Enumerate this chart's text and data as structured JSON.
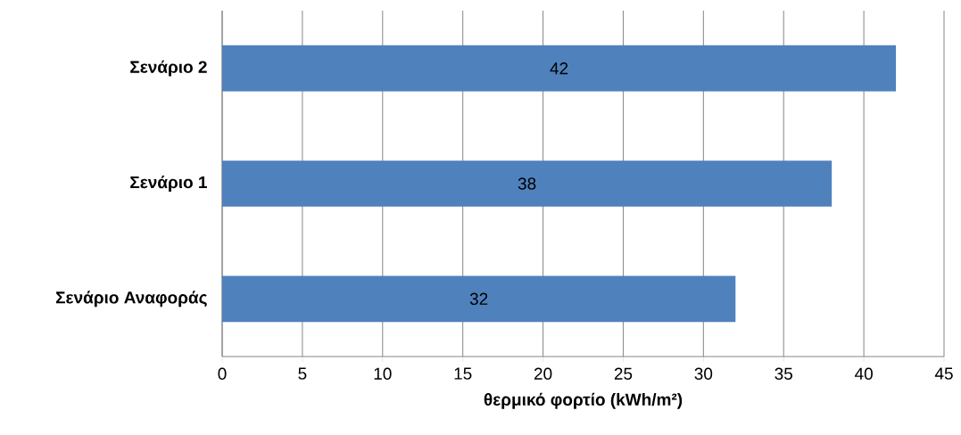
{
  "chart_data": {
    "type": "bar",
    "orientation": "horizontal",
    "categories": [
      "Σενάριο 2",
      "Σενάριο 1",
      "Σενάριο Αναφοράς"
    ],
    "values": [
      42,
      38,
      32
    ],
    "color": "#4f81bd",
    "xlabel": "θερμικό φορτίο (kWh/m²)",
    "xlim": [
      0,
      45
    ],
    "xticks": [
      0,
      5,
      10,
      15,
      20,
      25,
      30,
      35,
      40,
      45
    ],
    "grid": "x",
    "data_labels": true
  }
}
